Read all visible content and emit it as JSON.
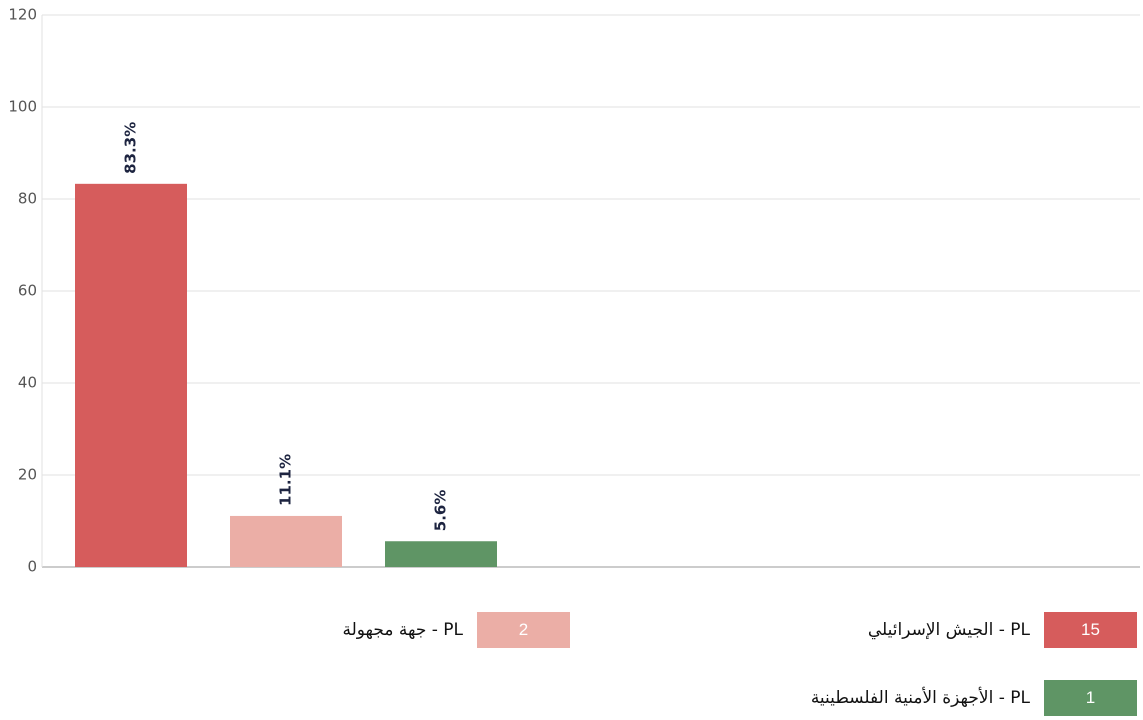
{
  "chart_data": {
    "type": "bar",
    "categories": [
      null,
      null,
      null
    ],
    "values": [
      83.3,
      11.1,
      5.6
    ],
    "value_labels": [
      "83.3%",
      "11.1%",
      "5.6%"
    ],
    "colors": [
      "#d65c5c",
      "#ebaea6",
      "#5f9565"
    ],
    "ylim": [
      0,
      120
    ],
    "yticks": [
      0,
      20,
      40,
      60,
      80,
      100,
      120
    ],
    "grid": true,
    "legend": [
      {
        "name": "PL - الجيش الإسرائيلي",
        "count": 15
      },
      {
        "name": "PL - جهة مجهولة",
        "count": 2
      },
      {
        "name": "PL - الأجهزة الأمنية الفلسطينية",
        "count": 1
      }
    ]
  }
}
